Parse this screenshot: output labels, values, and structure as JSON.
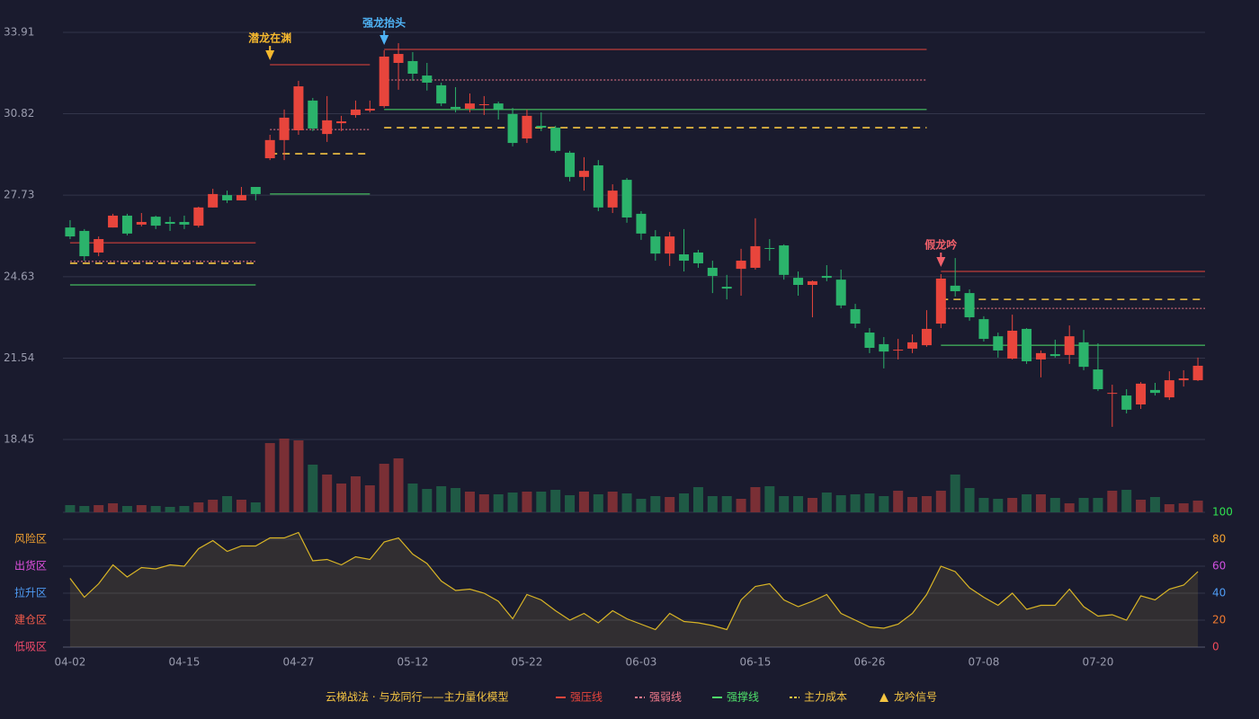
{
  "chart_data": {
    "type": "candlestick",
    "categories": [
      "04-02",
      null,
      null,
      null,
      null,
      null,
      null,
      null,
      "04-15",
      null,
      null,
      null,
      null,
      null,
      null,
      null,
      "04-27",
      null,
      null,
      null,
      null,
      null,
      null,
      null,
      "05-12",
      null,
      null,
      null,
      null,
      null,
      null,
      null,
      "05-22",
      null,
      null,
      null,
      null,
      null,
      null,
      null,
      "06-03",
      null,
      null,
      null,
      null,
      null,
      null,
      null,
      "06-15",
      null,
      null,
      null,
      null,
      null,
      null,
      null,
      "06-26",
      null,
      null,
      null,
      null,
      null,
      null,
      null,
      "07-08",
      null,
      null,
      null,
      null,
      null,
      null,
      null,
      "07-20",
      null,
      null,
      null,
      null,
      null,
      null,
      null
    ],
    "open": [
      26.5,
      26.37,
      25.55,
      26.5,
      26.95,
      26.61,
      26.91,
      26.71,
      26.71,
      26.57,
      27.26,
      27.73,
      27.53,
      28.04,
      29.13,
      29.82,
      30.19,
      31.32,
      30.05,
      30.46,
      30.77,
      30.94,
      31.11,
      32.75,
      32.82,
      32.27,
      31.9,
      31.08,
      31.01,
      31.15,
      31.21,
      30.81,
      29.88,
      30.36,
      30.29,
      29.34,
      28.42,
      28.86,
      27.26,
      28.31,
      27.02,
      26.16,
      25.51,
      25.48,
      25.55,
      24.97,
      24.25,
      24.93,
      24.97,
      25.72,
      25.82,
      24.59,
      24.32,
      24.66,
      24.52,
      23.4,
      22.51,
      22.07,
      21.83,
      21.9,
      22.03,
      22.85,
      24.29,
      24.01,
      23.02,
      22.37,
      21.52,
      22.65,
      21.49,
      21.69,
      21.66,
      22.14,
      21.11,
      20.19,
      20.12,
      19.78,
      20.33,
      20.05,
      20.7,
      20.7
    ],
    "high": [
      26.78,
      26.44,
      26.16,
      27.02,
      27.02,
      27.05,
      26.95,
      26.91,
      26.95,
      27.29,
      27.97,
      27.9,
      28.04,
      28.04,
      30.02,
      30.98,
      32.07,
      31.42,
      31.49,
      30.74,
      31.32,
      31.32,
      33.23,
      33.5,
      33.16,
      32.75,
      32.0,
      31.83,
      31.59,
      31.49,
      31.28,
      31.04,
      30.98,
      30.87,
      30.36,
      29.41,
      29.17,
      29.06,
      28.14,
      28.38,
      27.12,
      26.4,
      26.33,
      26.44,
      25.65,
      25.24,
      24.7,
      25.69,
      26.85,
      26.06,
      25.86,
      24.83,
      24.49,
      25.07,
      24.9,
      23.6,
      22.68,
      22.34,
      22.27,
      22.44,
      23.36,
      24.73,
      25.34,
      24.15,
      23.13,
      22.51,
      23.19,
      22.68,
      21.83,
      22.24,
      22.78,
      22.61,
      22.1,
      20.53,
      20.36,
      20.63,
      20.6,
      21.04,
      21.08,
      21.56
    ],
    "low": [
      26.06,
      25.24,
      25.41,
      26.5,
      26.2,
      26.54,
      26.44,
      26.37,
      26.44,
      26.5,
      27.26,
      27.43,
      27.53,
      27.53,
      29.06,
      29.06,
      30.02,
      30.16,
      29.75,
      30.16,
      30.67,
      30.87,
      31.04,
      31.73,
      32.07,
      31.7,
      31.11,
      30.87,
      30.87,
      30.77,
      30.6,
      29.58,
      29.71,
      30.16,
      29.34,
      28.25,
      27.9,
      27.12,
      27.05,
      26.68,
      26.03,
      25.24,
      25.04,
      24.83,
      24.97,
      24.01,
      23.77,
      23.91,
      24.9,
      25.24,
      24.52,
      23.91,
      23.09,
      24.46,
      23.43,
      22.68,
      21.73,
      21.15,
      21.49,
      21.73,
      21.97,
      22.68,
      23.88,
      22.96,
      22.17,
      21.56,
      21.49,
      21.32,
      20.81,
      21.56,
      21.32,
      21.08,
      20.29,
      18.93,
      19.44,
      19.61,
      20.12,
      19.95,
      20.46,
      20.67
    ],
    "close": [
      26.16,
      25.41,
      26.06,
      26.95,
      26.27,
      26.71,
      26.57,
      26.64,
      26.61,
      27.26,
      27.77,
      27.53,
      27.73,
      27.77,
      29.82,
      30.67,
      31.86,
      30.26,
      30.57,
      30.53,
      30.98,
      31.01,
      32.99,
      33.09,
      32.34,
      32.0,
      31.21,
      31.01,
      31.21,
      31.18,
      30.98,
      29.71,
      30.74,
      30.29,
      29.41,
      28.42,
      28.65,
      27.26,
      27.9,
      26.88,
      26.27,
      25.51,
      26.16,
      25.24,
      25.14,
      24.66,
      24.18,
      25.24,
      25.79,
      25.69,
      24.7,
      24.32,
      24.46,
      24.59,
      23.54,
      22.85,
      21.93,
      21.79,
      21.86,
      22.14,
      22.65,
      24.56,
      24.08,
      23.09,
      22.27,
      21.83,
      22.58,
      21.42,
      21.73,
      21.62,
      22.37,
      21.21,
      20.36,
      20.22,
      19.58,
      20.57,
      20.22,
      20.7,
      20.77,
      21.25
    ],
    "up_color": "#e8453c",
    "down_color": "#2bb36b",
    "ylim": [
      18.45,
      33.91
    ],
    "yticks": [
      18.45,
      21.54,
      24.63,
      27.73,
      30.82,
      33.91
    ],
    "grid": true,
    "volume": [
      8,
      7,
      8,
      10,
      7,
      8,
      7,
      6,
      7,
      11,
      14,
      18,
      14,
      11,
      77,
      82,
      80,
      53,
      42,
      32,
      40,
      30,
      54,
      60,
      32,
      26,
      29,
      27,
      23,
      20,
      20,
      22,
      23,
      23,
      25,
      19,
      23,
      20,
      23,
      21,
      15,
      18,
      17,
      21,
      28,
      18,
      18,
      15,
      28,
      29,
      18,
      18,
      16,
      22,
      19,
      20,
      21,
      18,
      24,
      17,
      18,
      24,
      42,
      27,
      16,
      15,
      16,
      20,
      20,
      16,
      10,
      16,
      16,
      24,
      25,
      14,
      17,
      9,
      10,
      13
    ],
    "volume_up_color": "#7a2f35",
    "volume_down_color": "#1f5a45",
    "indicator": {
      "values": [
        51,
        37,
        47,
        61,
        52,
        59,
        58,
        61,
        60,
        73,
        79,
        71,
        75,
        75,
        81,
        81,
        85,
        64,
        65,
        61,
        67,
        65,
        78,
        81,
        69,
        62,
        49,
        42,
        43,
        40,
        34,
        21,
        39,
        35,
        27,
        20,
        25,
        18,
        27,
        21,
        17,
        13,
        25,
        19,
        18,
        16,
        13,
        35,
        45,
        47,
        35,
        30,
        34,
        39,
        25,
        20,
        15,
        14,
        17,
        25,
        39,
        60,
        56,
        44,
        37,
        31,
        40,
        28,
        31,
        31,
        43,
        30,
        23,
        24,
        20,
        38,
        35,
        43,
        46,
        56
      ],
      "color": "#d9b526",
      "ylim": [
        0,
        100
      ],
      "yticks": [
        0,
        20,
        40,
        60,
        80,
        100
      ],
      "ytick_colors": [
        "#f04a5a",
        "#f07a30",
        "#4f9cf5",
        "#d050e0",
        "#f0a030",
        "#30e050"
      ],
      "zones": [
        {
          "label": "风险区",
          "value": 80,
          "color": "#f0a030"
        },
        {
          "label": "出货区",
          "value": 60,
          "color": "#e050e0"
        },
        {
          "label": "拉升区",
          "value": 40,
          "color": "#4f9cf5"
        },
        {
          "label": "建仓区",
          "value": 20,
          "color": "#f05a4a"
        },
        {
          "label": "低吸区",
          "value": 0,
          "color": "#f04a6a"
        }
      ]
    },
    "levels": [
      {
        "name": "强压线",
        "color": "#e8453c",
        "style": "solid",
        "segments": [
          {
            "from": 0,
            "to": 13,
            "value": 25.92
          },
          {
            "from": 14,
            "to": 21,
            "value": 32.68
          },
          {
            "from": 22,
            "to": 60,
            "value": 33.26
          },
          {
            "from": 61,
            "to": 79,
            "value": 24.83
          }
        ]
      },
      {
        "name": "强弱线",
        "color": "#f07a8c",
        "style": "dotted",
        "segments": [
          {
            "from": 0,
            "to": 13,
            "value": 25.21
          },
          {
            "from": 14,
            "to": 21,
            "value": 30.22
          },
          {
            "from": 22,
            "to": 60,
            "value": 32.1
          },
          {
            "from": 61,
            "to": 79,
            "value": 23.43
          }
        ]
      },
      {
        "name": "强撑线",
        "color": "#4ee06a",
        "style": "solid",
        "segments": [
          {
            "from": 0,
            "to": 13,
            "value": 24.32
          },
          {
            "from": 14,
            "to": 21,
            "value": 27.77
          },
          {
            "from": 22,
            "to": 60,
            "value": 30.98
          },
          {
            "from": 61,
            "to": 79,
            "value": 22.03
          }
        ]
      },
      {
        "name": "主力成本",
        "color": "#f5c542",
        "style": "dashed",
        "segments": [
          {
            "from": 0,
            "to": 13,
            "value": 25.14
          },
          {
            "from": 14,
            "to": 21,
            "value": 29.3
          },
          {
            "from": 22,
            "to": 60,
            "value": 30.29
          },
          {
            "from": 61,
            "to": 79,
            "value": 23.77
          }
        ]
      }
    ],
    "signals": [
      {
        "index": 14,
        "label": "潜龙在渊",
        "color": "#f5b82e"
      },
      {
        "index": 22,
        "label": "强龙抬头",
        "color": "#4fb3f5"
      },
      {
        "index": 61,
        "label": "假龙吟",
        "color": "#f0606a"
      }
    ],
    "legend_title": "云梯战法 · 与龙同行——主力量化模型",
    "signal_legend": {
      "label": "龙吟信号",
      "color": "#f5c542"
    }
  }
}
